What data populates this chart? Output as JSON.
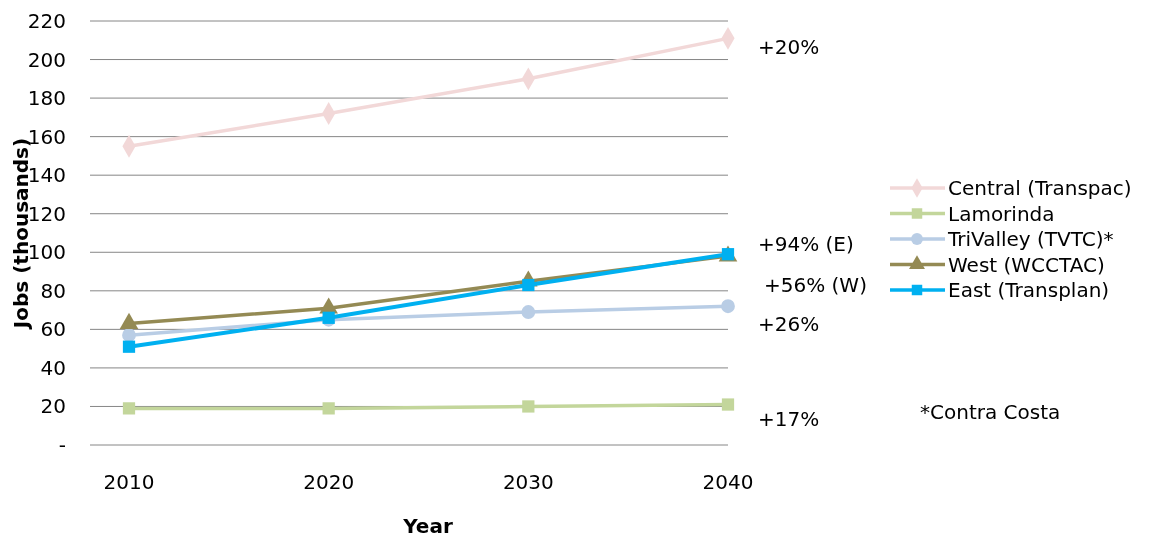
{
  "chart_data": {
    "type": "line",
    "xlabel": "Year",
    "ylabel": "Jobs (thousands)",
    "categories": [
      "2010",
      "2020",
      "2030",
      "2040"
    ],
    "ylim": [
      0,
      220
    ],
    "yticks": [
      {
        "value": 0,
        "label": "-"
      },
      20,
      40,
      60,
      80,
      100,
      120,
      140,
      160,
      180,
      200,
      220
    ],
    "grid": "y",
    "legend": "right",
    "series": [
      {
        "name": "Central (Transpac)",
        "color": "#f2d8d8",
        "marker": "diamond",
        "values": [
          155,
          172,
          190,
          211
        ]
      },
      {
        "name": "Lamorinda",
        "color": "#c3d69b",
        "marker": "square",
        "values": [
          19,
          19,
          20,
          21
        ]
      },
      {
        "name": "TriValley (TVTC)*",
        "color": "#b9cde5",
        "marker": "circle",
        "values": [
          57,
          65,
          69,
          72
        ]
      },
      {
        "name": "West (WCCTAC)",
        "color": "#948a54",
        "marker": "triangle",
        "values": [
          63,
          71,
          85,
          98
        ]
      },
      {
        "name": "East (Transplan)",
        "color": "#00b0f0",
        "marker": "square",
        "values": [
          51,
          66,
          83,
          99
        ]
      }
    ],
    "annotations": [
      "+20%",
      "+94% (E)",
      "+56% (W)",
      "+26%",
      "+17%",
      "*Contra Costa"
    ]
  }
}
